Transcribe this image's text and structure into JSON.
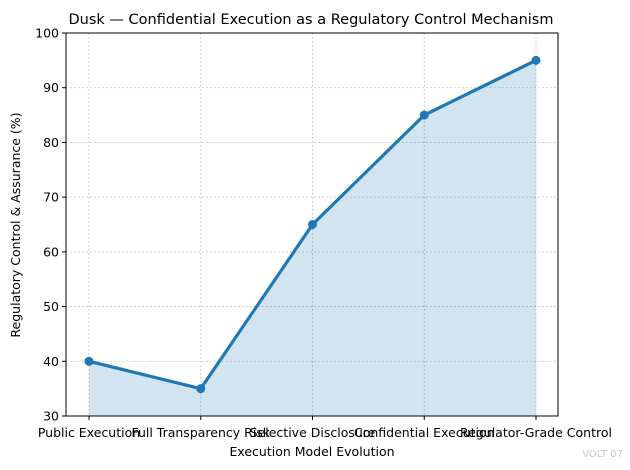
{
  "chart_data": {
    "type": "area",
    "title": "Dusk — Confidential Execution as a Regulatory Control Mechanism",
    "xlabel": "Execution Model Evolution",
    "ylabel": "Regulatory Control & Assurance (%)",
    "categories": [
      "Public Execution",
      "Full Transparency Risk",
      "Selective Disclosure",
      "Confidential Execution",
      "Regulator-Grade Control"
    ],
    "series": [
      {
        "values": [
          40,
          35,
          65,
          85,
          95
        ],
        "color": "#1f77b4"
      }
    ],
    "ylim": [
      30,
      100
    ],
    "yticks": [
      30,
      40,
      50,
      60,
      70,
      80,
      90,
      100
    ],
    "grid": true,
    "fill_color": "#1f77b4",
    "legend": "none"
  },
  "watermark": "VOLT 07"
}
